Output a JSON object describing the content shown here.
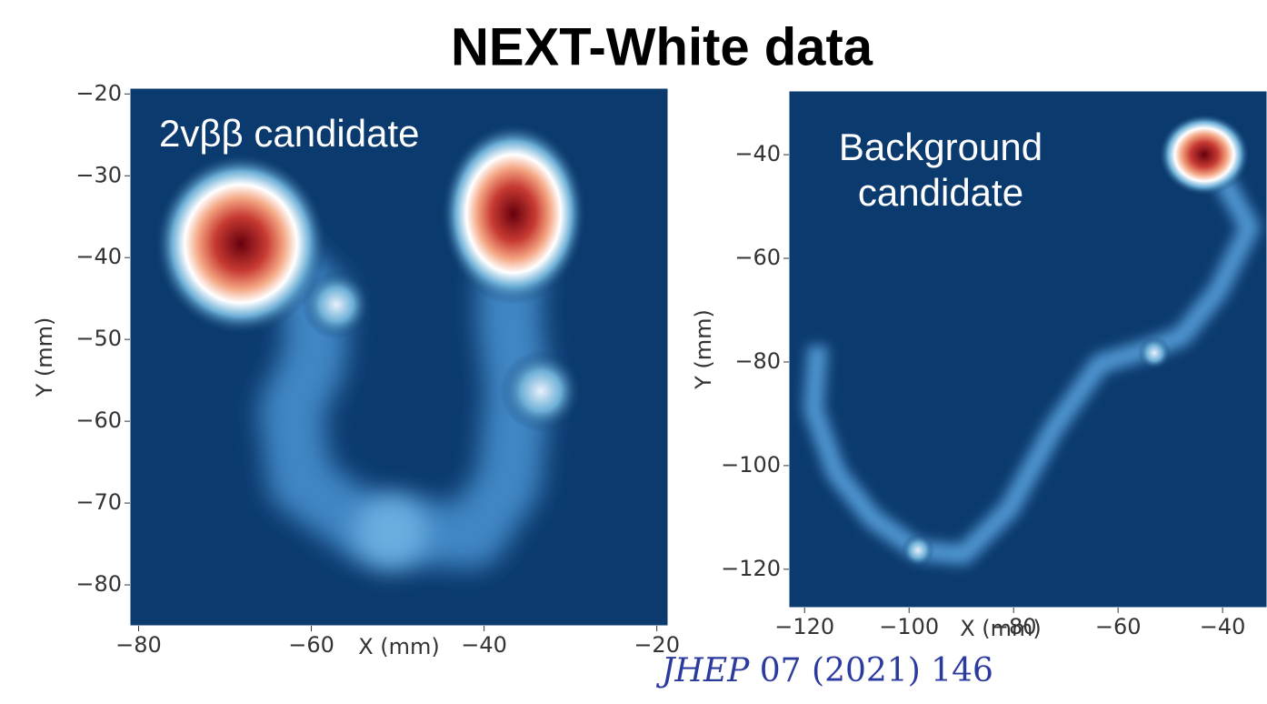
{
  "title": "NEXT-White data",
  "citation": {
    "journal": "JHEP",
    "reference": "07 (2021) 146"
  },
  "chart_data": [
    {
      "type": "heatmap",
      "annotation": [
        "2vββ candidate"
      ],
      "xlabel": "X (mm)",
      "ylabel": "Y (mm)",
      "xlim": [
        -81,
        -18.7
      ],
      "ylim": [
        -85,
        -19.3
      ],
      "xticks": [
        {
          "value": -80,
          "label": "−80"
        },
        {
          "value": -60,
          "label": "−60"
        },
        {
          "value": -40,
          "label": "−40"
        },
        {
          "value": -20,
          "label": "−20"
        }
      ],
      "yticks": [
        {
          "value": -20,
          "label": "−20"
        },
        {
          "value": -30,
          "label": "−30"
        },
        {
          "value": -40,
          "label": "−40"
        },
        {
          "value": -50,
          "label": "−50"
        },
        {
          "value": -60,
          "label": "−60"
        },
        {
          "value": -70,
          "label": "−70"
        },
        {
          "value": -80,
          "label": "−80"
        }
      ]
    },
    {
      "type": "heatmap",
      "annotation": [
        "Background",
        "candidate"
      ],
      "xlabel": "X (mm)",
      "ylabel": "Y (mm)",
      "xlim": [
        -123,
        -31.5
      ],
      "ylim": [
        -127.4,
        -27.7
      ],
      "xticks": [
        {
          "value": -120,
          "label": "−120"
        },
        {
          "value": -100,
          "label": "−100"
        },
        {
          "value": -80,
          "label": "−80"
        },
        {
          "value": -60,
          "label": "−60"
        },
        {
          "value": -40,
          "label": "−40"
        }
      ],
      "yticks": [
        {
          "value": -40,
          "label": "−40"
        },
        {
          "value": -60,
          "label": "−60"
        },
        {
          "value": -80,
          "label": "−80"
        },
        {
          "value": -100,
          "label": "−100"
        },
        {
          "value": -120,
          "label": "−120"
        }
      ]
    }
  ]
}
